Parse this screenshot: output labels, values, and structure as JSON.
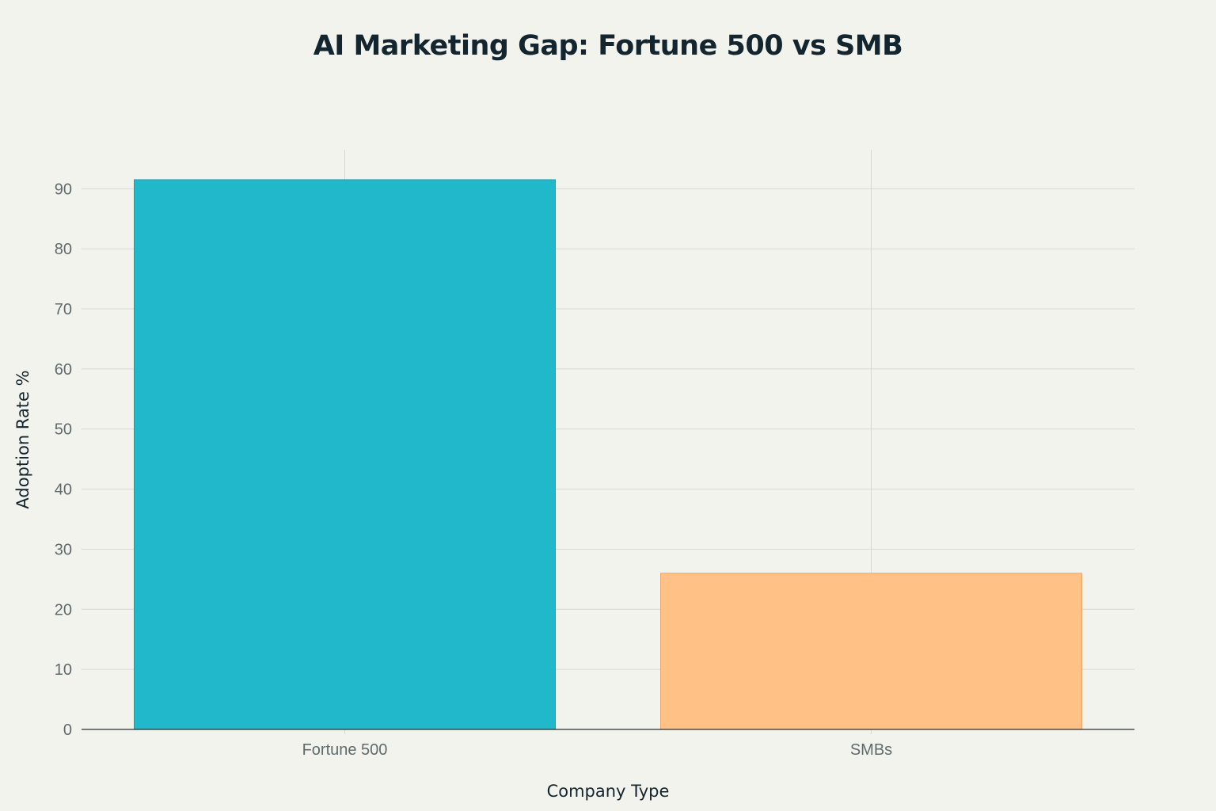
{
  "chart_data": {
    "type": "bar",
    "title": "AI Marketing Gap: Fortune 500 vs SMB",
    "xlabel": "Company Type",
    "ylabel": "Adoption Rate %",
    "categories": [
      "Fortune 500",
      "SMBs"
    ],
    "values": [
      91.5,
      26
    ],
    "colors": [
      "#21b8cc",
      "#ffc185"
    ],
    "bar_stroke_colors": [
      "#1a9fb0",
      "#e8a66a"
    ],
    "ylim": [
      0,
      96.5
    ],
    "yticks": [
      0,
      10,
      20,
      30,
      40,
      50,
      60,
      70,
      80,
      90
    ],
    "grid": true,
    "legend": "none"
  }
}
